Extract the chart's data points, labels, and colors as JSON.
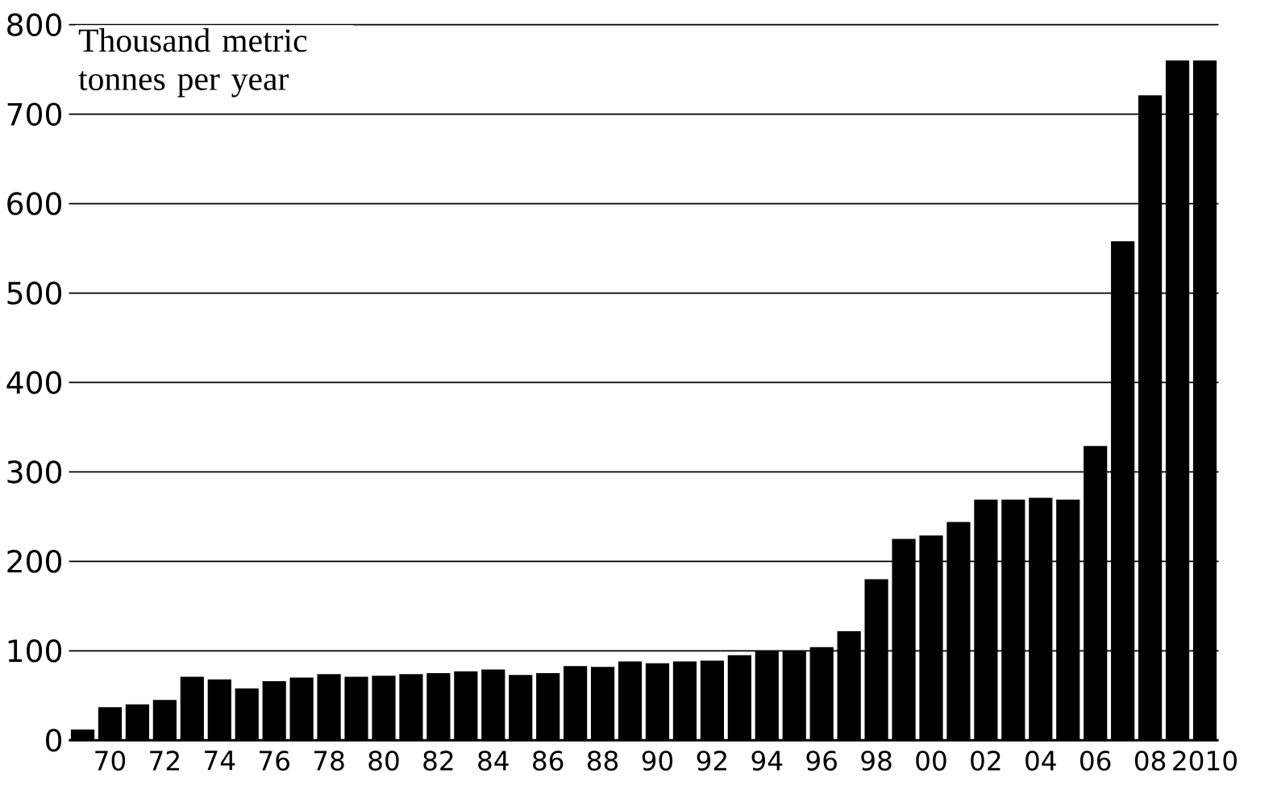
{
  "chart_data": {
    "type": "bar",
    "ylabel": "Thousand metric tonnes per year",
    "categories": [
      null,
      "70",
      null,
      "72",
      null,
      "74",
      null,
      "76",
      null,
      "78",
      null,
      "80",
      null,
      "82",
      null,
      "84",
      null,
      "86",
      null,
      "88",
      null,
      "90",
      null,
      "92",
      null,
      "94",
      null,
      "96",
      null,
      "98",
      null,
      "00",
      null,
      "02",
      null,
      "04",
      null,
      "06",
      null,
      "08",
      null,
      "2010"
    ],
    "values": [
      12,
      37,
      40,
      45,
      71,
      68,
      58,
      66,
      70,
      74,
      71,
      72,
      74,
      75,
      77,
      79,
      73,
      75,
      83,
      82,
      88,
      86,
      88,
      89,
      95,
      100,
      100,
      104,
      122,
      180,
      225,
      229,
      244,
      269,
      269,
      271,
      269,
      329,
      558,
      721,
      760,
      760
    ],
    "color": "#000000",
    "ylim": [
      0,
      800
    ],
    "yticks": [
      0,
      100,
      200,
      300,
      400,
      500,
      600,
      700,
      800
    ],
    "grid": "y"
  }
}
